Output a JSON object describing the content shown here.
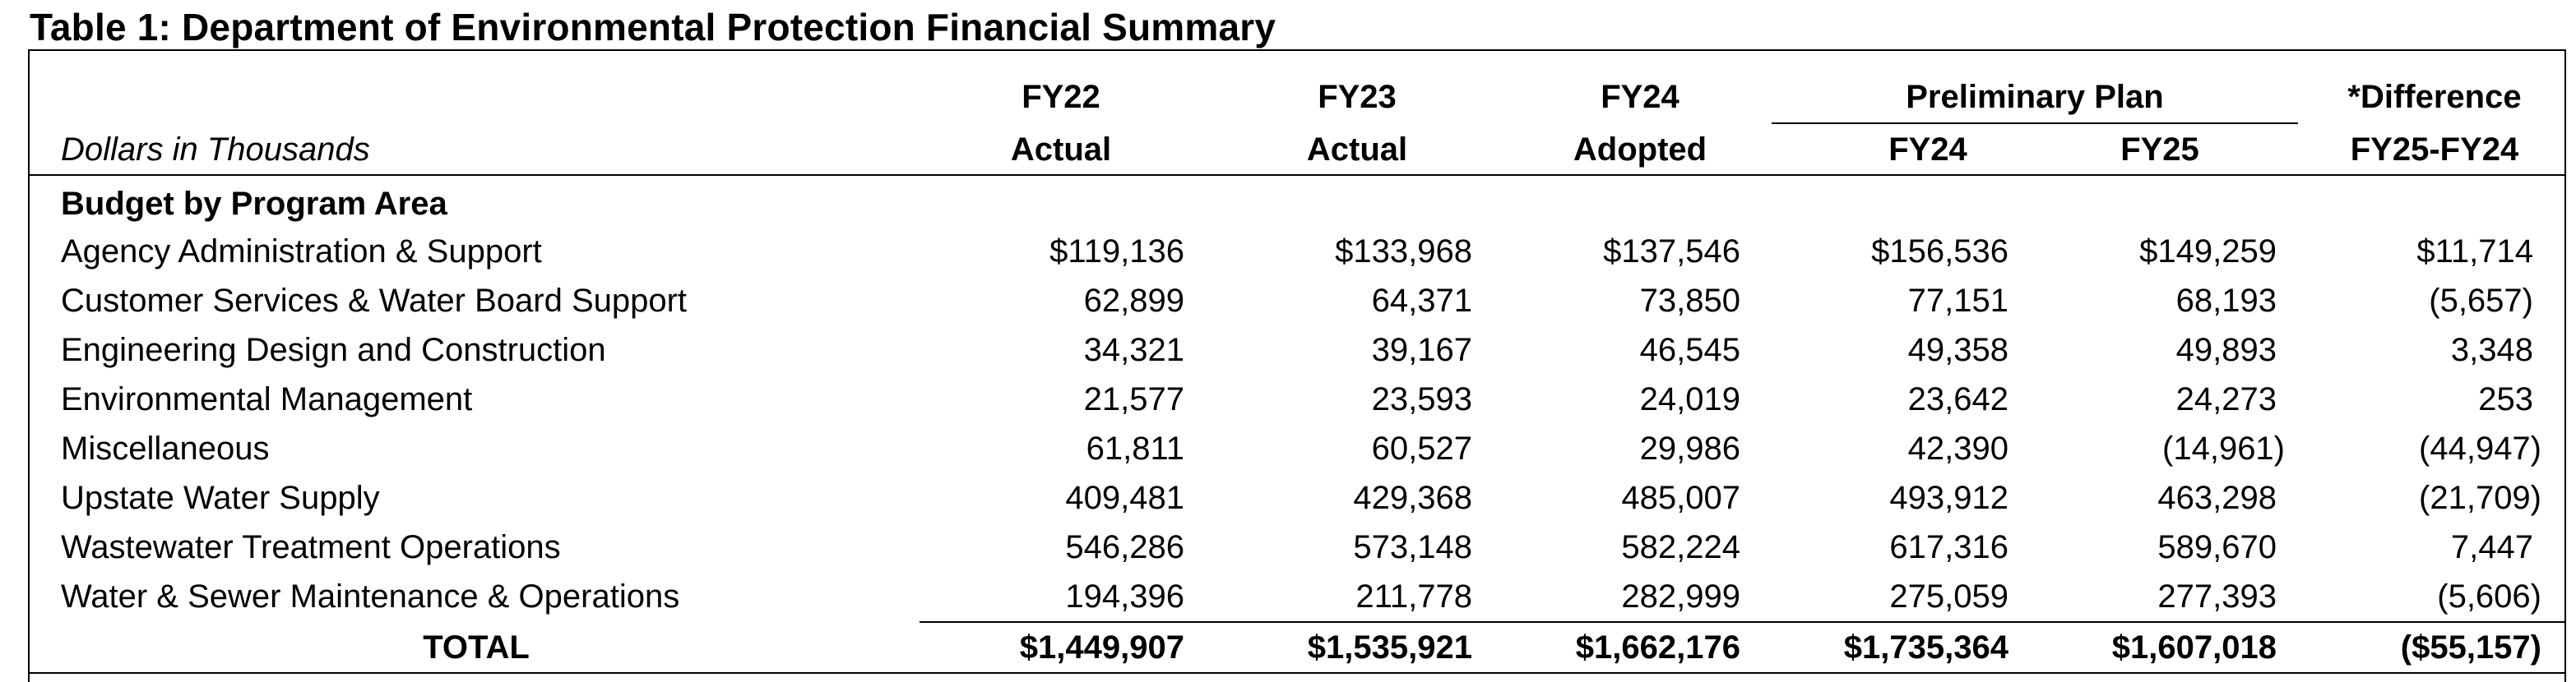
{
  "title": "Table 1: Department of Environmental Protection Financial Summary",
  "header": {
    "units_label": "Dollars in Thousands",
    "fy22_top": "FY22",
    "fy22_bottom": "Actual",
    "fy23_top": "FY23",
    "fy23_bottom": "Actual",
    "fy24_top": "FY24",
    "fy24_bottom": "Adopted",
    "prelim_plan": "Preliminary Plan",
    "prelim_fy24": "FY24",
    "prelim_fy25": "FY25",
    "diff_top": "*Difference",
    "diff_bottom": "FY25-FY24"
  },
  "section_label": "Budget by Program Area",
  "rows": [
    {
      "name": "Agency Administration & Support",
      "fy22": "$119,136",
      "fy23": "$133,968",
      "fy24": "$137,546",
      "p24": "$156,536",
      "p25": "$149,259",
      "diff": "$11,714"
    },
    {
      "name": "Customer Services & Water Board Support",
      "fy22": "62,899",
      "fy23": "64,371",
      "fy24": "73,850",
      "p24": "77,151",
      "p25": "68,193",
      "diff": "(5,657)"
    },
    {
      "name": "Engineering Design and Construction",
      "fy22": "34,321",
      "fy23": "39,167",
      "fy24": "46,545",
      "p24": "49,358",
      "p25": "49,893",
      "diff": "3,348"
    },
    {
      "name": "Environmental Management",
      "fy22": "21,577",
      "fy23": "23,593",
      "fy24": "24,019",
      "p24": "23,642",
      "p25": "24,273",
      "diff": "253"
    },
    {
      "name": "Miscellaneous",
      "fy22": "61,811",
      "fy23": "60,527",
      "fy24": "29,986",
      "p24": "42,390",
      "p25": "(14,961)",
      "diff": "(44,947)"
    },
    {
      "name": "Upstate Water Supply",
      "fy22": "409,481",
      "fy23": "429,368",
      "fy24": "485,007",
      "p24": "493,912",
      "p25": "463,298",
      "diff": "(21,709)"
    },
    {
      "name": "Wastewater Treatment Operations",
      "fy22": "546,286",
      "fy23": "573,148",
      "fy24": "582,224",
      "p24": "617,316",
      "p25": "589,670",
      "diff": "7,447"
    },
    {
      "name": "Water & Sewer Maintenance & Operations",
      "fy22": "194,396",
      "fy23": "211,778",
      "fy24": "282,999",
      "p24": "275,059",
      "p25": "277,393",
      "diff": "(5,606)"
    }
  ],
  "total": {
    "name": "TOTAL",
    "fy22": "$1,449,907",
    "fy23": "$1,535,921",
    "fy24": "$1,662,176",
    "p24": "$1,735,364",
    "p25": "$1,607,018",
    "diff": "($55,157)"
  }
}
